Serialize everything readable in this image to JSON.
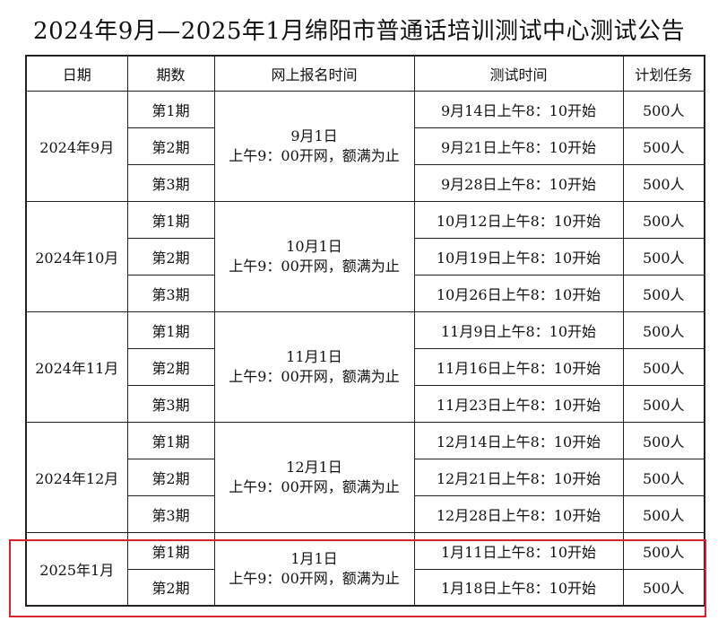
{
  "title": "2024年9月—2025年1月绵阳市普通话培训测试中心测试公告",
  "headers": {
    "date": "日期",
    "session": "期数",
    "register": "网上报名时间",
    "test_time": "测试时间",
    "quota": "计划任务"
  },
  "groups": [
    {
      "month": "2024年9月",
      "reg_date": "9月1日",
      "reg_note": "上午9：00开网，额满为止",
      "rows": [
        {
          "session": "第1期",
          "time": "9月14日上午8：10开始",
          "quota": "500人"
        },
        {
          "session": "第2期",
          "time": "9月21日上午8：10开始",
          "quota": "500人"
        },
        {
          "session": "第3期",
          "time": "9月28日上午8：10开始",
          "quota": "500人"
        }
      ]
    },
    {
      "month": "2024年10月",
      "reg_date": "10月1日",
      "reg_note": "上午9：00开网，额满为止",
      "rows": [
        {
          "session": "第1期",
          "time": "10月12日上午8：10开始",
          "quota": "500人"
        },
        {
          "session": "第2期",
          "time": "10月19日上午8：10开始",
          "quota": "500人"
        },
        {
          "session": "第3期",
          "time": "10月26日上午8：10开始",
          "quota": "500人"
        }
      ]
    },
    {
      "month": "2024年11月",
      "reg_date": "11月1日",
      "reg_note": "上午9：00开网，额满为止",
      "rows": [
        {
          "session": "第1期",
          "time": "11月9日上午8：10开始",
          "quota": "500人"
        },
        {
          "session": "第2期",
          "time": "11月16日上午8：10开始",
          "quota": "500人"
        },
        {
          "session": "第3期",
          "time": "11月23日上午8：10开始",
          "quota": "500人"
        }
      ]
    },
    {
      "month": "2024年12月",
      "reg_date": "12月1日",
      "reg_note": "上午9：00开网，额满为止",
      "rows": [
        {
          "session": "第1期",
          "time": "12月14日上午8：10开始",
          "quota": "500人"
        },
        {
          "session": "第2期",
          "time": "12月21日上午8：10开始",
          "quota": "500人"
        },
        {
          "session": "第3期",
          "time": "12月28日上午8：10开始",
          "quota": "500人"
        }
      ]
    },
    {
      "month": "2025年1月",
      "reg_date": "1月1日",
      "reg_note": "上午9：00开网，额满为止",
      "rows": [
        {
          "session": "第1期",
          "time": "1月11日上午8：10开始",
          "quota": "500人"
        },
        {
          "session": "第2期",
          "time": "1月18日上午8：10开始",
          "quota": "500人"
        }
      ]
    }
  ],
  "highlight_color": "#d9232e"
}
